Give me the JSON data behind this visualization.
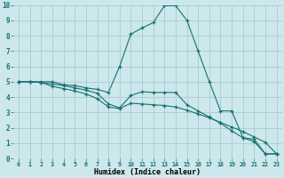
{
  "xlabel": "Humidex (Indice chaleur)",
  "bg_color": "#cce8ec",
  "grid_color": "#aacccc",
  "line_color": "#1a7070",
  "xlim": [
    -0.5,
    23.5
  ],
  "ylim": [
    0,
    10
  ],
  "xticks": [
    0,
    1,
    2,
    3,
    4,
    5,
    6,
    7,
    8,
    9,
    10,
    11,
    12,
    13,
    14,
    15,
    16,
    17,
    18,
    19,
    20,
    21,
    22,
    23
  ],
  "yticks": [
    0,
    1,
    2,
    3,
    4,
    5,
    6,
    7,
    8,
    9,
    10
  ],
  "line1_x": [
    0,
    1,
    2,
    3,
    4,
    5,
    6,
    7,
    8,
    9,
    10,
    11,
    12,
    13,
    14,
    15,
    16,
    17,
    18,
    19,
    20,
    21,
    22,
    23
  ],
  "line1_y": [
    5.0,
    5.0,
    5.0,
    5.0,
    4.8,
    4.75,
    4.6,
    4.5,
    4.3,
    6.0,
    8.1,
    8.5,
    8.85,
    9.95,
    9.95,
    9.0,
    7.0,
    5.0,
    3.1,
    3.1,
    1.35,
    1.25,
    0.3,
    0.3
  ],
  "line2_x": [
    0,
    1,
    2,
    3,
    4,
    5,
    6,
    7,
    8,
    9,
    10,
    11,
    12,
    13,
    14,
    15,
    16,
    17,
    18,
    19,
    20,
    21,
    22,
    23
  ],
  "line2_y": [
    5.0,
    5.0,
    4.95,
    4.85,
    4.75,
    4.6,
    4.45,
    4.25,
    3.55,
    3.3,
    4.1,
    4.35,
    4.3,
    4.3,
    4.3,
    3.5,
    3.1,
    2.7,
    2.3,
    1.8,
    1.35,
    1.1,
    0.3,
    0.3
  ],
  "line3_x": [
    0,
    1,
    2,
    3,
    4,
    5,
    6,
    7,
    8,
    9,
    10,
    11,
    12,
    13,
    14,
    15,
    16,
    17,
    18,
    19,
    20,
    21,
    22,
    23
  ],
  "line3_y": [
    5.0,
    5.0,
    4.95,
    4.7,
    4.55,
    4.4,
    4.2,
    3.9,
    3.35,
    3.25,
    3.6,
    3.55,
    3.5,
    3.45,
    3.35,
    3.15,
    2.9,
    2.65,
    2.35,
    2.05,
    1.75,
    1.4,
    1.05,
    0.3
  ]
}
